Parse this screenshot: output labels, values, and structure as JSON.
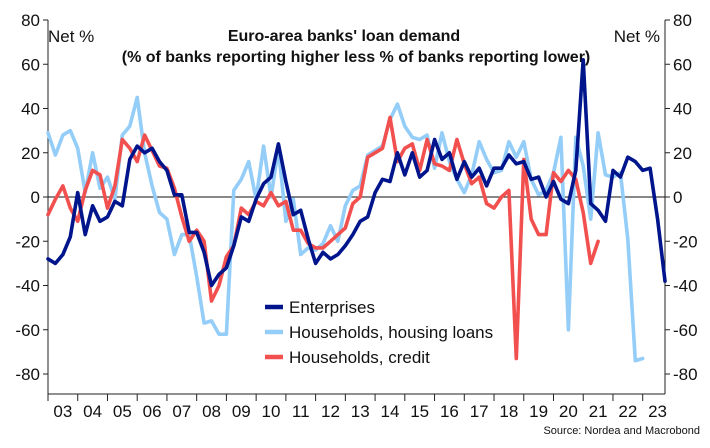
{
  "chart_data": {
    "type": "line",
    "title": "Euro-area banks' loan demand",
    "subtitle": "(% of banks reporting higher less % of banks reporting lower)",
    "ylabel_left": "Net %",
    "ylabel_right": "Net %",
    "source": "Source: Nordea and Macrobond",
    "ylim": [
      -85,
      85
    ],
    "yticks": [
      -80,
      -60,
      -40,
      -20,
      0,
      20,
      40,
      60,
      80
    ],
    "x_start": 2003.0,
    "x_end": 2023.75,
    "xtick_labels": [
      "03",
      "04",
      "05",
      "06",
      "07",
      "08",
      "09",
      "10",
      "11",
      "12",
      "13",
      "14",
      "15",
      "16",
      "17",
      "18",
      "19",
      "20",
      "21",
      "22",
      "23"
    ],
    "gridlines": false,
    "legend_position": "center-bottom",
    "series": [
      {
        "name": "Enterprises",
        "color": "#00148c",
        "values": [
          -28,
          -30,
          -26,
          -18,
          2,
          -17,
          -4,
          -11,
          -9,
          -2,
          -4,
          17,
          23,
          20,
          22,
          16,
          12,
          1,
          1,
          -16,
          -16,
          -25,
          -40,
          -35,
          -32,
          -22,
          -9,
          -11,
          -1,
          6,
          9,
          24,
          7,
          -8,
          -6,
          -19,
          -30,
          -25,
          -28,
          -26,
          -22,
          -17,
          -11,
          -9,
          2,
          8,
          7,
          20,
          10,
          20,
          9,
          12,
          26,
          17,
          20,
          8,
          16,
          9,
          13,
          5,
          13,
          13,
          19,
          15,
          16,
          8,
          9,
          0,
          7,
          -1,
          -3,
          12,
          62,
          -3,
          -6,
          -11,
          12,
          9,
          18,
          16,
          12,
          13,
          -10,
          -38
        ]
      },
      {
        "name": "Households, housing loans",
        "color": "#93cdf8",
        "values": [
          29,
          19,
          28,
          30,
          22,
          2,
          20,
          4,
          9,
          -1,
          28,
          32,
          45,
          20,
          5,
          -7,
          -10,
          -26,
          -17,
          -17,
          -36,
          -57,
          -56,
          -62,
          -62,
          3,
          8,
          16,
          -1,
          23,
          0,
          22,
          -11,
          -1,
          -26,
          -23,
          -24,
          -21,
          -13,
          -20,
          -4,
          3,
          5,
          19,
          21,
          23,
          35,
          42,
          32,
          27,
          26,
          28,
          13,
          29,
          16,
          8,
          2,
          10,
          25,
          17,
          11,
          12,
          25,
          18,
          25,
          8,
          1,
          3,
          11,
          27,
          -60,
          27,
          14,
          -10,
          29,
          10,
          9,
          11,
          -19,
          -74,
          -73
        ]
      },
      {
        "name": "Households, credit",
        "color": "#f2504f",
        "values": [
          -8,
          -1,
          5,
          -5,
          -11,
          3,
          12,
          10,
          -5,
          5,
          26,
          22,
          16,
          28,
          21,
          14,
          13,
          4,
          -9,
          -20,
          -15,
          -20,
          -47,
          -40,
          -27,
          -22,
          -5,
          -8,
          -2,
          -4,
          2,
          -4,
          -2,
          -15,
          -15,
          -21,
          -23,
          -23,
          -20,
          -17,
          -14,
          -3,
          0,
          18,
          20,
          22,
          36,
          16,
          22,
          24,
          12,
          26,
          15,
          14,
          12,
          26,
          15,
          6,
          9,
          -3,
          -5,
          0,
          3,
          -73,
          17,
          -10,
          -17,
          -17,
          11,
          7,
          12,
          8,
          -7,
          -30,
          -20
        ]
      }
    ]
  }
}
